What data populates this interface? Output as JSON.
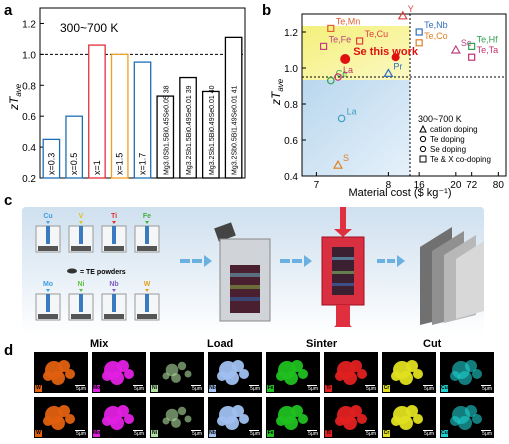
{
  "panels": {
    "a": "a",
    "b": "b",
    "c": "c",
    "d": "d"
  },
  "panel_a": {
    "range_label": "300~700 K",
    "ylabel": "zT",
    "ylabel_sub": "ave",
    "yticks": [
      "0.2",
      "0.4",
      "0.6",
      "0.8",
      "1.0",
      "1.2"
    ],
    "bar_labels": [
      "x=0.3",
      "x=0.5",
      "x=1",
      "x=1.5",
      "x=1.7",
      "Mg3.0Sb1.5Bi0.45Se0.05 38",
      "Mg3.2Sb1.5Bi0.49Se0.01 39",
      "Mg3.2Sb1.5Bi0.49Se0.01 40",
      "Mg3.2Sb0.5Bi1.49Se0.01 41"
    ],
    "colors": [
      "#1f6fb5",
      "#1f6fb5",
      "#e0303a",
      "#f0a020",
      "#1f6fb5",
      "#000000",
      "#000000",
      "#000000",
      "#000000"
    ]
  },
  "panel_b": {
    "ylabel": "zT",
    "ylabel_sub": "ave",
    "xlabel": "Material cost ($ kg⁻¹)",
    "xticks": [
      "7",
      "8",
      "16",
      "20",
      "72",
      "80"
    ],
    "yticks": [
      "0.4",
      "0.6",
      "0.8",
      "1.0",
      "1.2"
    ],
    "highlight": "Se this work",
    "range_label": "300~700 K",
    "legend": [
      "cation doping",
      "Te doping",
      "Se doping",
      "Te & X co-doping"
    ],
    "point_labels": [
      "Te,Mn",
      "Te,Cu",
      "Te,Fe",
      "Ce",
      "La",
      "La",
      "S",
      "Y",
      "Te,Nb",
      "Te,Co",
      "Sc",
      "Te,Hf",
      "Te,Ta",
      "Pr"
    ]
  },
  "panel_c": {
    "elements_top": [
      "Cu",
      "V",
      "Ti",
      "Fe"
    ],
    "elements_bottom": [
      "Mo",
      "Ni",
      "Nb",
      "W"
    ],
    "powder_label": "= TE powders",
    "stages": [
      "Mix",
      "Load",
      "Sinter",
      "Cut"
    ]
  },
  "panel_d": {
    "tiles": [
      {
        "tag": "W",
        "color": "#e06010"
      },
      {
        "tag": "Mo",
        "color": "#e020e0"
      },
      {
        "tag": "Ni",
        "color": "#b0e0a0"
      },
      {
        "tag": "Nb",
        "color": "#a0c0f0"
      },
      {
        "tag": "Fe",
        "color": "#20c020"
      },
      {
        "tag": "Ti",
        "color": "#e02020"
      },
      {
        "tag": "Cr",
        "color": "#e0e020"
      },
      {
        "tag": "Cu",
        "color": "#20d0d0"
      }
    ],
    "scale": "5μm"
  },
  "chart_data": [
    {
      "type": "bar",
      "categories": [
        "x=0.3",
        "x=0.5",
        "x=1",
        "x=1.5",
        "x=1.7",
        "Mg3.0Sb1.5Bi0.45Se0.05 38",
        "Mg3.2Sb1.5Bi0.49Se0.01 39",
        "Mg3.2Sb1.5Bi0.49Se0.01 40",
        "Mg3.2Sb0.5Bi1.49Se0.01 41"
      ],
      "values": [
        0.45,
        0.6,
        1.06,
        1.0,
        0.95,
        0.73,
        0.85,
        0.76,
        1.11
      ],
      "title": "300~700 K",
      "xlabel": "",
      "ylabel": "zTave",
      "ylim": [
        0.2,
        1.3
      ],
      "reference_line": 1.0
    },
    {
      "type": "scatter",
      "title": "300~700 K",
      "xlabel": "Material cost ($ kg⁻¹)",
      "ylabel": "zTave",
      "ylim": [
        0.4,
        1.3
      ],
      "series": [
        {
          "name": "cation doping",
          "points": [
            {
              "label": "Y",
              "x": 8.2,
              "y": 1.29
            },
            {
              "label": "Sc",
              "x": 20,
              "y": 1.1
            },
            {
              "label": "Pr",
              "x": 8.0,
              "y": 0.97
            },
            {
              "label": "S",
              "x": 7.3,
              "y": 0.46
            }
          ]
        },
        {
          "name": "Te doping",
          "points": [
            {
              "label": "Ce",
              "x": 7.2,
              "y": 0.93
            },
            {
              "label": "La",
              "x": 7.3,
              "y": 0.95
            },
            {
              "label": "La",
              "x": 7.35,
              "y": 0.72
            }
          ]
        },
        {
          "name": "Se doping",
          "points": [
            {
              "label": "Se this work",
              "x": 7.4,
              "y": 1.05
            }
          ]
        },
        {
          "name": "Te & X co-doping",
          "points": [
            {
              "label": "Te,Mn",
              "x": 7.2,
              "y": 1.22
            },
            {
              "label": "Te,Cu",
              "x": 7.6,
              "y": 1.15
            },
            {
              "label": "Te,Fe",
              "x": 7.1,
              "y": 1.12
            },
            {
              "label": "Te,Nb",
              "x": 16,
              "y": 1.2
            },
            {
              "label": "Te,Co",
              "x": 16,
              "y": 1.14
            },
            {
              "label": "Te,Hf",
              "x": 72,
              "y": 1.12
            },
            {
              "label": "Te,Ta",
              "x": 72,
              "y": 1.06
            }
          ]
        }
      ]
    }
  ]
}
